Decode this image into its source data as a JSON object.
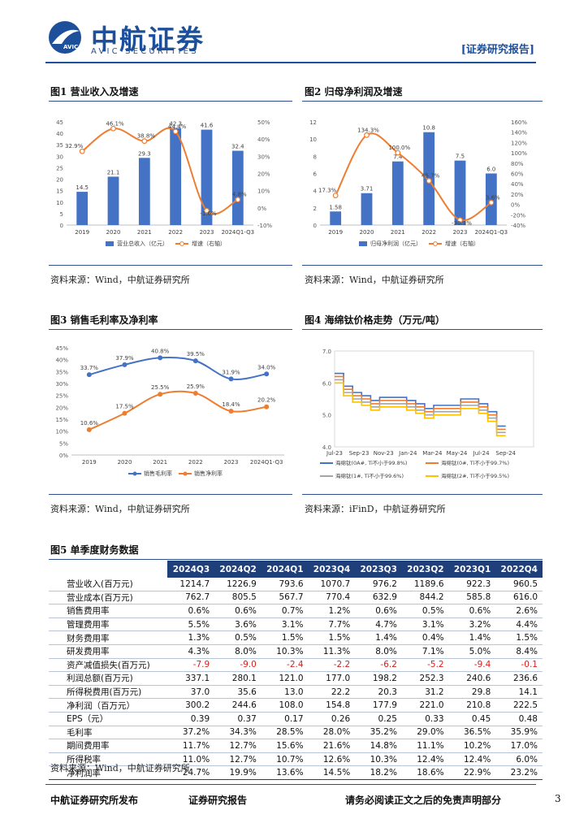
{
  "header": {
    "logo_cn": "中航证券",
    "logo_en": "AVIC SECURITIES",
    "logo_badge": "AVIC",
    "report_tag": "[证券研究报告]"
  },
  "fig1": {
    "title": "图1  营业收入及增速",
    "source": "资料来源：Wind，中航证券研究所",
    "chart_data": {
      "type": "bar",
      "categories": [
        "2019",
        "2020",
        "2021",
        "2022",
        "2023",
        "2024Q1-Q3"
      ],
      "series": [
        {
          "name": "营业总收入（亿元）",
          "type": "bar",
          "axis": "left",
          "values": [
            14.5,
            21.1,
            29.3,
            42.3,
            41.6,
            32.4
          ]
        },
        {
          "name": "增速（右轴）",
          "type": "line",
          "axis": "right",
          "values": [
            32.9,
            46.1,
            38.8,
            44.4,
            -1.6,
            4.8
          ],
          "labels": [
            "32.9%",
            "46.1%",
            "38.8%",
            "44.4%",
            "-1.6%",
            "4.8%"
          ]
        }
      ],
      "ylim": [
        0,
        45
      ],
      "yticks": [
        "0",
        "5",
        "10",
        "15",
        "20",
        "25",
        "30",
        "35",
        "40",
        "45"
      ],
      "y2lim": [
        -10,
        50
      ],
      "y2ticks": [
        "-10%",
        "0%",
        "10%",
        "20%",
        "30%",
        "40%",
        "50%"
      ]
    }
  },
  "fig2": {
    "title": "图2  归母净利润及增速",
    "source": "资料来源：Wind，中航证券研究所",
    "chart_data": {
      "type": "bar",
      "categories": [
        "2019",
        "2020",
        "2021",
        "2022",
        "2023",
        "2024Q1-Q3"
      ],
      "series": [
        {
          "name": "归母净利润（亿元）",
          "type": "bar",
          "axis": "left",
          "values": [
            1.58,
            3.71,
            7.4,
            10.8,
            7.5,
            6.0
          ],
          "labels": [
            "1.58",
            "3.71",
            "7.4",
            "10.8",
            "7.5",
            "6.0"
          ]
        },
        {
          "name": "增速（右轴）",
          "type": "line",
          "axis": "right",
          "values": [
            17.3,
            134.3,
            100.0,
            45.7,
            -30.3,
            3.6
          ],
          "labels": [
            "17.3%",
            "134.3%",
            "100.0%",
            "45.7%",
            "-30.3%",
            "3.6%"
          ]
        }
      ],
      "ylim": [
        0,
        12
      ],
      "yticks": [
        "0",
        "2",
        "4",
        "6",
        "8",
        "10",
        "12"
      ],
      "y2lim": [
        -40,
        160
      ],
      "y2ticks": [
        "-40%",
        "-20%",
        "0%",
        "20%",
        "40%",
        "60%",
        "80%",
        "100%",
        "120%",
        "140%",
        "160%"
      ]
    }
  },
  "fig3": {
    "title": "图3  销售毛利率及净利率",
    "source": "资料来源：Wind，中航证券研究所",
    "chart_data": {
      "type": "line",
      "categories": [
        "2019",
        "2020",
        "2021",
        "2022",
        "2023",
        "2024Q1-Q3"
      ],
      "series": [
        {
          "name": "销售毛利率",
          "values": [
            33.7,
            37.9,
            40.8,
            39.5,
            31.9,
            34.0
          ],
          "labels": [
            "33.7%",
            "37.9%",
            "40.8%",
            "39.5%",
            "31.9%",
            "34.0%"
          ]
        },
        {
          "name": "销售净利率",
          "values": [
            10.6,
            17.5,
            25.5,
            25.9,
            18.4,
            20.2
          ],
          "labels": [
            "10.6%",
            "17.5%",
            "25.5%",
            "25.9%",
            "18.4%",
            "20.2%"
          ]
        }
      ],
      "ylim": [
        0,
        45
      ],
      "yticks": [
        "0%",
        "5%",
        "10%",
        "15%",
        "20%",
        "25%",
        "30%",
        "35%",
        "40%",
        "45%"
      ]
    }
  },
  "fig4": {
    "title": "图4  海绵钛价格走势（万元/吨）",
    "source": "资料来源：iFinD，中航证券研究所",
    "chart_data": {
      "type": "line",
      "xticks": [
        "Jul-23",
        "Sep-23",
        "Nov-23",
        "Jan-24",
        "Mar-24",
        "May-24",
        "Jul-24",
        "Sep-24"
      ],
      "ylim": [
        4.0,
        7.0
      ],
      "yticks": [
        "4.0",
        "5.0",
        "6.0",
        "7.0"
      ],
      "series": [
        {
          "name": "海绵钛(0A#, Ti不小于99.8%)",
          "color": "#4472c4",
          "values": [
            6.3,
            5.9,
            5.7,
            5.6,
            5.45,
            5.55,
            5.55,
            5.55,
            5.45,
            5.35,
            5.2,
            5.3,
            5.3,
            5.3,
            5.5,
            5.5,
            5.35,
            5.1,
            4.65,
            4.65
          ]
        },
        {
          "name": "海绵钛(0#, Ti不小于99.7%)",
          "color": "#ed7d31",
          "values": [
            6.2,
            5.8,
            5.6,
            5.5,
            5.35,
            5.45,
            5.45,
            5.45,
            5.35,
            5.25,
            5.1,
            5.2,
            5.2,
            5.2,
            5.4,
            5.4,
            5.25,
            5.0,
            4.55,
            4.55
          ]
        },
        {
          "name": "海绵钛(1#, Ti不小于99.6%)",
          "color": "#a5a5a5",
          "values": [
            6.1,
            5.7,
            5.5,
            5.4,
            5.25,
            5.35,
            5.35,
            5.35,
            5.25,
            5.15,
            5.0,
            5.1,
            5.1,
            5.1,
            5.3,
            5.3,
            5.15,
            4.9,
            4.45,
            4.45
          ]
        },
        {
          "name": "海绵钛(2#, Ti不小于99.5%)",
          "color": "#ffc000",
          "values": [
            6.0,
            5.6,
            5.4,
            5.3,
            5.15,
            5.25,
            5.25,
            5.25,
            5.15,
            5.05,
            4.9,
            5.0,
            5.0,
            5.0,
            5.2,
            5.2,
            5.05,
            4.8,
            4.35,
            4.35
          ]
        }
      ]
    }
  },
  "fig5": {
    "title": "图5  单季度财务数据",
    "source": "资料来源：Wind，中航证券研究所",
    "columns": [
      "2024Q3",
      "2024Q2",
      "2024Q1",
      "2023Q4",
      "2023Q3",
      "2023Q2",
      "2023Q1",
      "2022Q4"
    ],
    "rows": [
      {
        "label": "营业收入(百万元)",
        "values": [
          "1214.7",
          "1226.9",
          "793.6",
          "1070.7",
          "976.2",
          "1189.6",
          "922.3",
          "960.5"
        ]
      },
      {
        "label": "营业成本(百万元)",
        "values": [
          "762.7",
          "805.5",
          "567.7",
          "770.4",
          "632.9",
          "844.2",
          "585.8",
          "616.0"
        ]
      },
      {
        "label": "销售费用率",
        "values": [
          "0.6%",
          "0.6%",
          "0.7%",
          "1.2%",
          "0.6%",
          "0.5%",
          "0.6%",
          "2.6%"
        ]
      },
      {
        "label": "管理费用率",
        "values": [
          "5.5%",
          "3.6%",
          "3.1%",
          "7.7%",
          "4.7%",
          "3.1%",
          "3.2%",
          "4.4%"
        ]
      },
      {
        "label": "财务费用率",
        "values": [
          "1.3%",
          "0.5%",
          "1.5%",
          "1.5%",
          "1.4%",
          "0.4%",
          "1.4%",
          "1.5%"
        ]
      },
      {
        "label": "研发费用率",
        "values": [
          "4.3%",
          "8.0%",
          "10.3%",
          "11.3%",
          "8.0%",
          "7.1%",
          "5.0%",
          "8.4%"
        ]
      },
      {
        "label": "资产减值损失(百万元)",
        "values": [
          "-7.9",
          "-9.0",
          "-2.4",
          "-2.2",
          "-6.2",
          "-5.2",
          "-9.4",
          "-0.1"
        ]
      },
      {
        "label": "利润总额(百万元)",
        "values": [
          "337.1",
          "280.1",
          "121.0",
          "177.0",
          "198.2",
          "252.3",
          "240.6",
          "236.6"
        ]
      },
      {
        "label": "所得税费用(百万元)",
        "values": [
          "37.0",
          "35.6",
          "13.0",
          "22.2",
          "20.3",
          "31.2",
          "29.8",
          "14.1"
        ]
      },
      {
        "label": "净利润（百万元）",
        "values": [
          "300.2",
          "244.6",
          "108.0",
          "154.8",
          "177.9",
          "221.0",
          "210.8",
          "222.5"
        ]
      },
      {
        "label": "EPS（元）",
        "values": [
          "0.39",
          "0.37",
          "0.17",
          "0.26",
          "0.25",
          "0.33",
          "0.45",
          "0.48"
        ]
      },
      {
        "label": "毛利率",
        "values": [
          "37.2%",
          "34.3%",
          "28.5%",
          "28.0%",
          "35.2%",
          "29.0%",
          "36.5%",
          "35.9%"
        ]
      },
      {
        "label": "期间费用率",
        "values": [
          "11.7%",
          "12.7%",
          "15.6%",
          "21.6%",
          "14.8%",
          "11.1%",
          "10.2%",
          "17.0%"
        ]
      },
      {
        "label": "所得税率",
        "values": [
          "11.0%",
          "12.7%",
          "10.7%",
          "12.6%",
          "10.3%",
          "12.4%",
          "12.4%",
          "6.0%"
        ]
      },
      {
        "label": "净利润率",
        "values": [
          "24.7%",
          "19.9%",
          "13.6%",
          "14.5%",
          "18.2%",
          "18.6%",
          "22.9%",
          "23.2%"
        ]
      }
    ]
  },
  "footer": {
    "publisher": "中航证券研究所发布",
    "report_type": "证券研究报告",
    "disclaimer": "请务必阅读正文之后的免责声明部分",
    "page": "3"
  }
}
